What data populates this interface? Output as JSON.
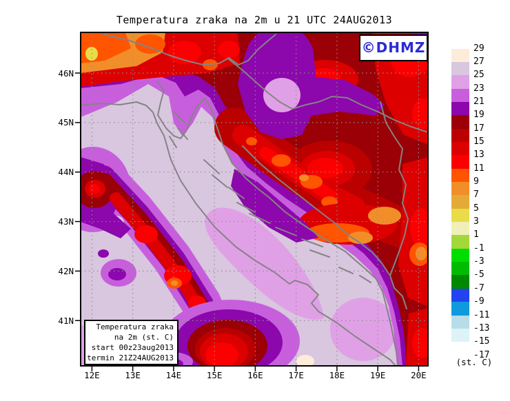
{
  "title": "Temperatura zraka na 2m u 21 UTC 24AUG2013",
  "watermark": {
    "text": "©DHMZ"
  },
  "legend_box": {
    "line1": "Temperatura zraka",
    "line2": "na 2m (st. C)",
    "line3": "start 00z23aug2013",
    "line4": "termin 21Z24AUG2013"
  },
  "axes": {
    "lat_labels": [
      "46N",
      "45N",
      "44N",
      "43N",
      "42N",
      "41N"
    ],
    "lon_labels": [
      "12E",
      "13E",
      "14E",
      "15E",
      "16E",
      "17E",
      "18E",
      "19E",
      "20E"
    ]
  },
  "colorbar": {
    "tick_labels": [
      "29",
      "27",
      "25",
      "23",
      "21",
      "19",
      "17",
      "15",
      "13",
      "11",
      "9",
      "7",
      "5",
      "3",
      "1",
      "-1",
      "-3",
      "-5",
      "-7",
      "-9",
      "-11",
      "-13",
      "-15",
      "-17"
    ],
    "colors": [
      "#fcecd9",
      "#d9c6df",
      "#e0a0e6",
      "#c75fdd",
      "#8c07ac",
      "#9a0005",
      "#bb0000",
      "#dc0000",
      "#fb0000",
      "#ff5400",
      "#f18e2a",
      "#e3ab36",
      "#e8dc49",
      "#f0efb8",
      "#a2d83a",
      "#00dd00",
      "#00bb00",
      "#008800",
      "#2244ee",
      "#0f9ade",
      "#b8dde8",
      "#def3f5",
      "#ffffff"
    ],
    "unit": "(st. C)"
  },
  "palette": {
    "frame": "#000000",
    "coast": "#848484",
    "grid": "#8f8f8f",
    "watermark_text": "#2b2bd6"
  },
  "chart_data": {
    "type": "heatmap",
    "title": "Temperatura zraka na 2m u 21 UTC 24AUG2013",
    "variable": "air temperature at 2 m (st. C)",
    "valid_time": "21 UTC 24AUG2013",
    "model_start": "00z23aug2013",
    "extent": {
      "lon": [
        "12E",
        "20E"
      ],
      "lat": [
        "41N",
        "46N"
      ]
    },
    "levels_celsius": [
      29,
      27,
      25,
      23,
      21,
      19,
      17,
      15,
      13,
      11,
      9,
      7,
      5,
      3,
      1,
      -1,
      -3,
      -5,
      -7,
      -9,
      -11,
      -13,
      -15,
      -17
    ],
    "level_colors": [
      "#fcecd9",
      "#d9c6df",
      "#e0a0e6",
      "#c75fdd",
      "#8c07ac",
      "#9a0005",
      "#bb0000",
      "#dc0000",
      "#fb0000",
      "#ff5400",
      "#f18e2a",
      "#e3ab36",
      "#e8dc49",
      "#f0efb8",
      "#a2d83a",
      "#00dd00",
      "#00bb00",
      "#008800",
      "#2244ee",
      "#0f9ade",
      "#b8dde8",
      "#def3f5",
      "#ffffff"
    ],
    "legend_position": "right",
    "grid": "dotted graticule every 1 degree",
    "observed_regions": {
      "adriatic_sea": "25-27",
      "coastal_belt": "21-23",
      "inland_balkans": "13-19",
      "alpine_northwest": "7-11",
      "apennine_ridge": "9-15"
    }
  }
}
